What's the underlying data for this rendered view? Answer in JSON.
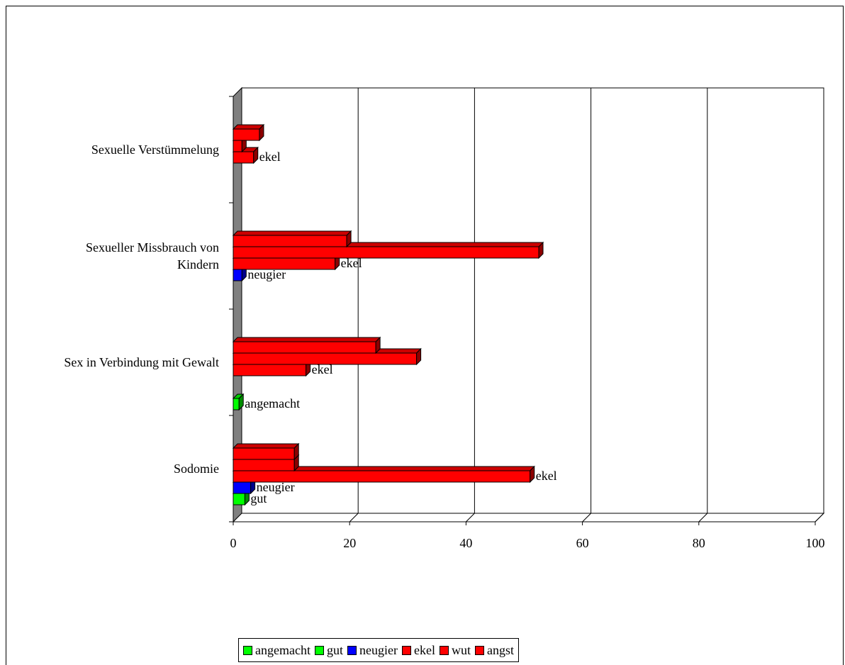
{
  "chart_data": {
    "type": "bar",
    "orientation": "horizontal",
    "style": "3d",
    "categories": [
      "Sodomie",
      "Sex in Verbindung mit Gewalt",
      "Sexueller Missbrauch von Kindern",
      "Sexuelle Verstümmelung"
    ],
    "category_lines": [
      [
        "Sodomie"
      ],
      [
        "Sex in Verbindung mit Gewalt"
      ],
      [
        "Sexueller Missbrauch von",
        "Kindern"
      ],
      [
        "Sexuelle Verstümmelung"
      ]
    ],
    "series": [
      {
        "name": "angemacht",
        "color": "#00ff00",
        "values": [
          0,
          1,
          0,
          0
        ]
      },
      {
        "name": "gut",
        "color": "#00ff00",
        "values": [
          2,
          0,
          0,
          0
        ]
      },
      {
        "name": "neugier",
        "color": "#0000ff",
        "values": [
          3,
          0,
          1.5,
          0
        ]
      },
      {
        "name": "ekel",
        "color": "#ff0000",
        "values": [
          51,
          12.5,
          17.5,
          3.5
        ]
      },
      {
        "name": "wut",
        "color": "#ff0000",
        "values": [
          10.5,
          31.5,
          52.5,
          1.5
        ]
      },
      {
        "name": "angst",
        "color": "#ff0000",
        "values": [
          10.5,
          24.5,
          19.5,
          4.5
        ]
      }
    ],
    "data_labels": {
      "shown_for": [
        "angemacht",
        "gut",
        "neugier",
        "ekel"
      ]
    },
    "xlim": [
      0,
      100
    ],
    "xticks": [
      0,
      20,
      40,
      60,
      80,
      100
    ],
    "grid": "vertical",
    "legend": "bottom",
    "title": "",
    "xlabel": "",
    "ylabel": ""
  }
}
